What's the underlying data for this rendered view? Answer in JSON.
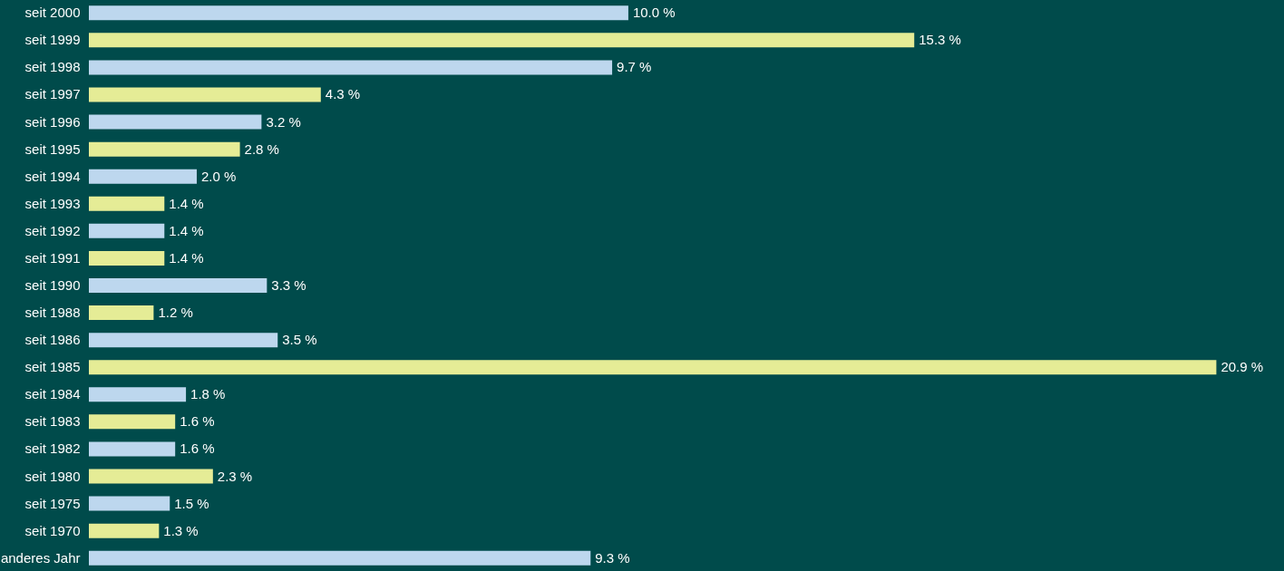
{
  "chart_data": {
    "type": "bar",
    "orientation": "horizontal",
    "categories": [
      "seit 2000",
      "seit 1999",
      "seit 1998",
      "seit 1997",
      "seit 1996",
      "seit 1995",
      "seit 1994",
      "seit 1993",
      "seit 1992",
      "seit 1991",
      "seit 1990",
      "seit 1988",
      "seit 1986",
      "seit 1985",
      "seit 1984",
      "seit 1983",
      "seit 1982",
      "seit 1980",
      "seit 1975",
      "seit 1970",
      "anderes Jahr"
    ],
    "values": [
      10.0,
      15.3,
      9.7,
      4.3,
      3.2,
      2.8,
      2.0,
      1.4,
      1.4,
      1.4,
      3.3,
      1.2,
      3.5,
      20.9,
      1.8,
      1.6,
      1.6,
      2.3,
      1.5,
      1.3,
      9.3
    ],
    "value_labels": [
      "10.0 %",
      "15.3 %",
      "9.7 %",
      "4.3 %",
      "3.2 %",
      "2.8 %",
      "2.0 %",
      "1.4 %",
      "1.4 %",
      "1.4 %",
      "3.3 %",
      "1.2 %",
      "3.5 %",
      "20.9 %",
      "1.8 %",
      "1.6 %",
      "1.6 %",
      "2.3 %",
      "1.5 %",
      "1.3 %",
      "9.3 %"
    ],
    "colors": [
      "#bdd7ee",
      "#e5ec96",
      "#bdd7ee",
      "#e5ec96",
      "#bdd7ee",
      "#e5ec96",
      "#bdd7ee",
      "#e5ec96",
      "#bdd7ee",
      "#e5ec96",
      "#bdd7ee",
      "#e5ec96",
      "#bdd7ee",
      "#e5ec96",
      "#bdd7ee",
      "#e5ec96",
      "#bdd7ee",
      "#e5ec96",
      "#bdd7ee",
      "#e5ec96",
      "#bdd7ee"
    ],
    "data_labels": false
  }
}
